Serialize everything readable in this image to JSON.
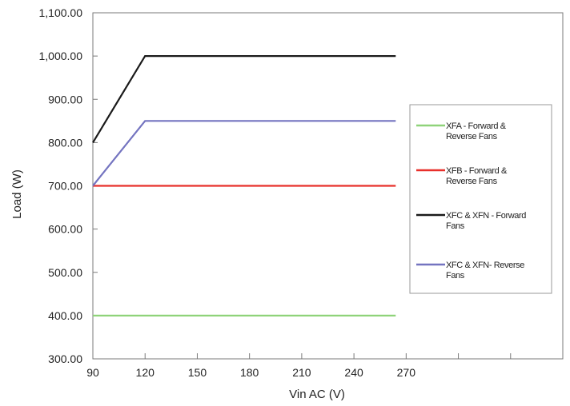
{
  "chart_data": {
    "type": "line",
    "xlabel": "Vin AC (V)",
    "ylabel": "Load (W)",
    "xlim": [
      90,
      360
    ],
    "ylim": [
      300,
      1100
    ],
    "x_ticks": [
      "90",
      "120",
      "150",
      "180",
      "210",
      "240",
      "270"
    ],
    "y_ticks": [
      "300.00",
      "400.00",
      "500.00",
      "600.00",
      "700.00",
      "800.00",
      "900.00",
      "1,000.00",
      "1,100.00"
    ],
    "grid": false,
    "legend_position": "right",
    "series": [
      {
        "name": "XFA - Forward & Reverse Fans",
        "legend_lines": [
          "XFA - Forward &",
          "Reverse Fans"
        ],
        "color": "#8fd37a",
        "points": [
          [
            90,
            400
          ],
          [
            264,
            400
          ]
        ]
      },
      {
        "name": "XFB - Forward & Reverse Fans",
        "legend_lines": [
          "XFB - Forward &",
          "Reverse Fans"
        ],
        "color": "#e8302b",
        "points": [
          [
            90,
            700
          ],
          [
            264,
            700
          ]
        ]
      },
      {
        "name": "XFC & XFN - Forward Fans",
        "legend_lines": [
          "XFC & XFN - Forward",
          "Fans"
        ],
        "color": "#1a1a1a",
        "points": [
          [
            90,
            800
          ],
          [
            120,
            1000
          ],
          [
            264,
            1000
          ]
        ]
      },
      {
        "name": "XFC & XFN- Reverse Fans",
        "legend_lines": [
          "XFC & XFN- Reverse",
          "Fans"
        ],
        "color": "#7474c0",
        "points": [
          [
            90,
            700
          ],
          [
            120,
            850
          ],
          [
            264,
            850
          ]
        ]
      }
    ]
  }
}
